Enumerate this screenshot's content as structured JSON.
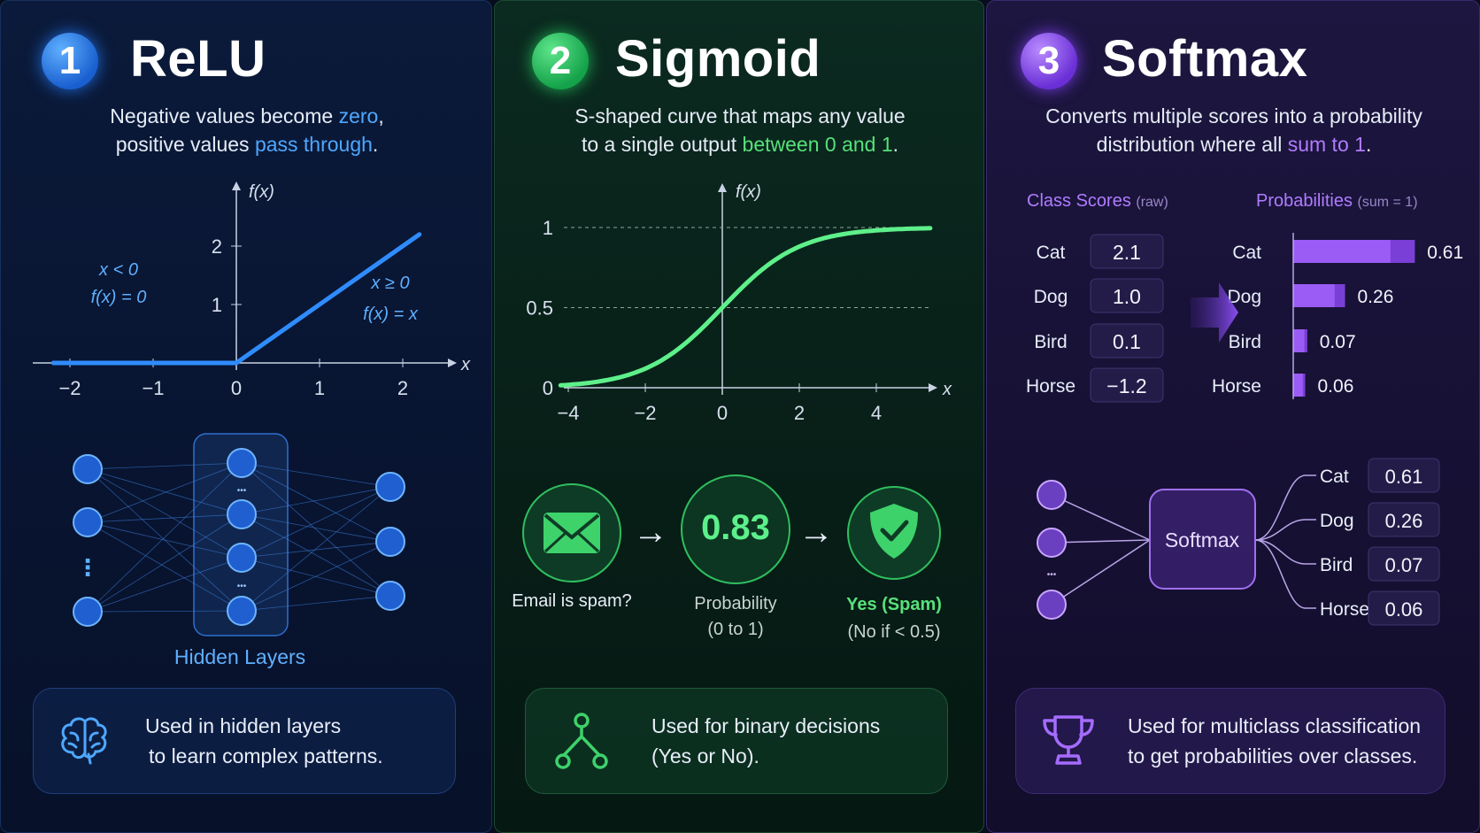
{
  "relu": {
    "number": "1",
    "title": "ReLU",
    "desc_line1_a": "Negative values become ",
    "desc_line1_hl": "zero",
    "desc_line1_b": ",",
    "desc_line2_a": "positive values ",
    "desc_line2_hl": "pass through",
    "desc_line2_b": ".",
    "chart_data": {
      "type": "line",
      "x": [
        -2.2,
        0,
        2.2
      ],
      "y": [
        0,
        0,
        2.2
      ],
      "xticks": [
        "−2",
        "−1",
        "0",
        "1",
        "2"
      ],
      "yticks": [
        "1",
        "2"
      ],
      "xlabel": "x",
      "ylabel": "f(x)",
      "annotations": [
        "x < 0",
        "f(x) = 0",
        "x ≥ 0",
        "f(x) = x"
      ]
    },
    "network_label": "Hidden Layers",
    "ellipsis": "⋮",
    "dots": "•••",
    "footer_icon": "brain-icon",
    "footer_line1": "Used in hidden layers",
    "footer_line2": "to learn complex patterns.",
    "accent": "#2f8cff"
  },
  "sigmoid": {
    "number": "2",
    "title": "Sigmoid",
    "desc_line1": "S-shaped curve that maps any value",
    "desc_line2_a": "to a single output ",
    "desc_line2_hl": "between 0 and 1",
    "desc_line2_b": ".",
    "chart_data": {
      "type": "line",
      "x": [
        -4,
        -3,
        -2,
        -1,
        0,
        1,
        2,
        3,
        4,
        5
      ],
      "y": [
        0.018,
        0.047,
        0.119,
        0.269,
        0.5,
        0.731,
        0.881,
        0.953,
        0.982,
        0.993
      ],
      "xticks": [
        "−4",
        "−2",
        "0",
        "2",
        "4"
      ],
      "yticks": [
        "0",
        "0.5",
        "1"
      ],
      "xlabel": "x",
      "ylabel": "f(x)"
    },
    "flow": {
      "input_icon": "envelope-icon",
      "input_label": "Email is spam?",
      "arrow": "→",
      "prob_value": "0.83",
      "prob_label1": "Probability",
      "prob_label2": "(0 to 1)",
      "output_icon": "shield-check-icon",
      "output_label1": "Yes (Spam)",
      "output_label2": "(No if < 0.5)"
    },
    "footer_icon": "decision-tree-icon",
    "footer_line1": "Used for binary decisions",
    "footer_line2": "(Yes or No).",
    "accent": "#3ecf6a"
  },
  "softmax": {
    "number": "3",
    "title": "Softmax",
    "desc_line1": "Converts multiple scores into a probability",
    "desc_line2_a": "distribution where all ",
    "desc_line2_hl": "sum to 1",
    "desc_line2_b": ".",
    "scores_header": "Class Scores",
    "scores_sub": "(raw)",
    "probs_header": "Probabilities",
    "probs_sub": "(sum = 1)",
    "chart_data": {
      "type": "bar",
      "categories": [
        "Cat",
        "Dog",
        "Bird",
        "Horse"
      ],
      "scores": [
        "2.1",
        "1.0",
        "0.1",
        "−1.2"
      ],
      "values": [
        0.61,
        0.26,
        0.07,
        0.06
      ],
      "value_labels": [
        "0.61",
        "0.26",
        "0.07",
        "0.06"
      ]
    },
    "node_label": "Softmax",
    "dots": "•••",
    "footer_icon": "trophy-icon",
    "footer_line1": "Used for multiclass classification",
    "footer_line2": "to get probabilities over classes.",
    "accent": "#9b5cf5"
  }
}
